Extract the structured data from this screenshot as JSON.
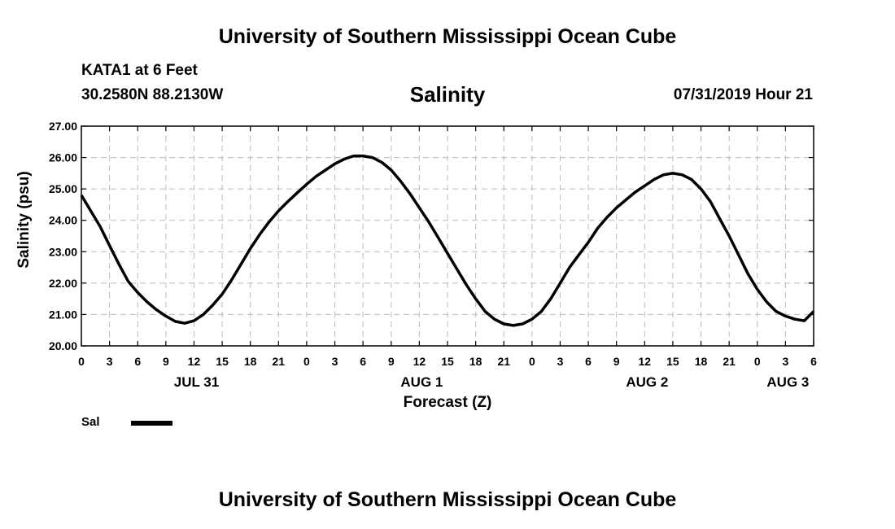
{
  "header": {
    "title": "University of Southern Mississippi Ocean Cube"
  },
  "footer": {
    "title": "University of Southern Mississippi Ocean Cube"
  },
  "station": {
    "name": "KATA1 at 6 Feet",
    "coords": "30.2580N 88.2130W"
  },
  "run": {
    "datetime": "07/31/2019 Hour 21"
  },
  "legend": {
    "label": "Sal",
    "color": "#000000"
  },
  "chart_data": {
    "type": "line",
    "title": "Salinity",
    "xlabel": "Forecast (Z)",
    "ylabel": "Salinity (psu)",
    "ylim": [
      20,
      27
    ],
    "y_ticks": [
      "20.00",
      "21.00",
      "22.00",
      "23.00",
      "24.00",
      "25.00",
      "26.00",
      "27.00"
    ],
    "x_range_hours": [
      0,
      78
    ],
    "x_tick_labels": [
      "0",
      "3",
      "6",
      "9",
      "12",
      "15",
      "18",
      "21",
      "0",
      "3",
      "6",
      "9",
      "12",
      "15",
      "18",
      "21",
      "0",
      "3",
      "6",
      "9",
      "12",
      "15",
      "18",
      "21",
      "0",
      "3",
      "6"
    ],
    "day_labels": [
      {
        "label": "JUL 31",
        "hour": 12
      },
      {
        "label": "AUG 1",
        "hour": 36
      },
      {
        "label": "AUG 2",
        "hour": 60
      },
      {
        "label": "AUG 3",
        "hour": 75
      }
    ],
    "grid": true,
    "series": [
      {
        "name": "Sal",
        "color": "#000000",
        "x": [
          0,
          2,
          3,
          4,
          5,
          6,
          7,
          8,
          9,
          10,
          11,
          12,
          13,
          14,
          15,
          16,
          17,
          18,
          19,
          20,
          21,
          22,
          23,
          24,
          25,
          26,
          27,
          28,
          29,
          30,
          31,
          32,
          33,
          34,
          35,
          36,
          37,
          38,
          39,
          40,
          41,
          42,
          43,
          44,
          45,
          46,
          47,
          48,
          49,
          50,
          51,
          52,
          53,
          54,
          55,
          56,
          57,
          58,
          59,
          60,
          61,
          62,
          63,
          64,
          65,
          66,
          67,
          68,
          69,
          70,
          71,
          72,
          73,
          74,
          75,
          76,
          77,
          78
        ],
        "values": [
          24.8,
          23.8,
          23.2,
          22.6,
          22.05,
          21.7,
          21.4,
          21.15,
          20.95,
          20.78,
          20.72,
          20.8,
          21.0,
          21.3,
          21.65,
          22.1,
          22.6,
          23.1,
          23.55,
          23.95,
          24.3,
          24.6,
          24.88,
          25.15,
          25.4,
          25.6,
          25.8,
          25.95,
          26.05,
          26.05,
          26.0,
          25.85,
          25.6,
          25.25,
          24.85,
          24.4,
          23.95,
          23.45,
          22.95,
          22.45,
          21.95,
          21.5,
          21.1,
          20.85,
          20.7,
          20.65,
          20.7,
          20.85,
          21.1,
          21.5,
          22.0,
          22.5,
          22.9,
          23.3,
          23.75,
          24.1,
          24.4,
          24.65,
          24.9,
          25.1,
          25.3,
          25.45,
          25.5,
          25.45,
          25.3,
          25.0,
          24.6,
          24.05,
          23.5,
          22.9,
          22.3,
          21.8,
          21.4,
          21.1,
          20.95,
          20.85,
          20.8,
          21.1
        ]
      }
    ]
  }
}
